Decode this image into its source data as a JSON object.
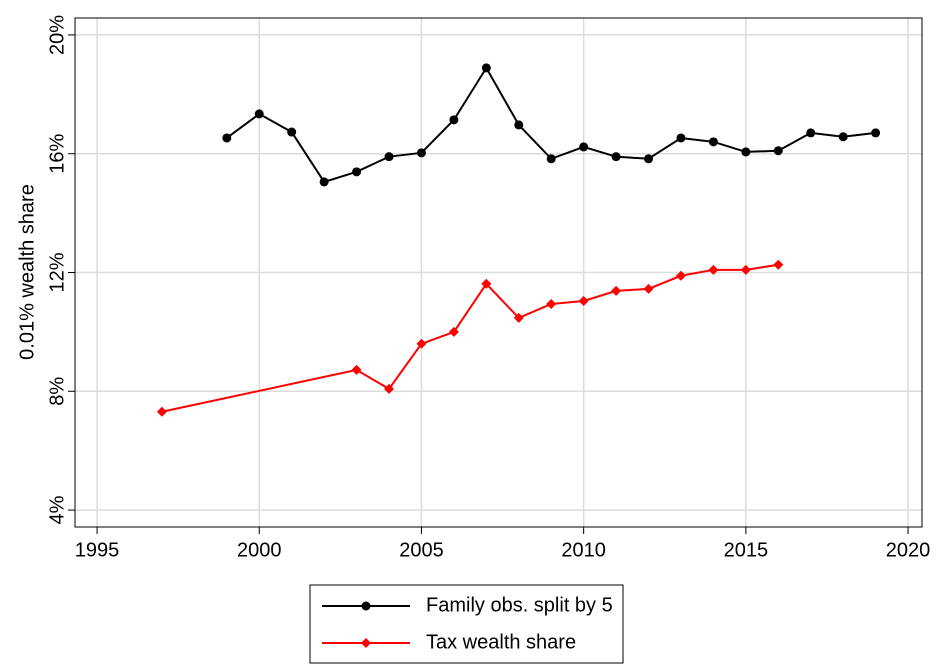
{
  "chart_data": {
    "type": "line",
    "ylabel": "0.01% wealth share",
    "xlim": [
      1994.32,
      2020.43
    ],
    "ylim": [
      3.43,
      20.57
    ],
    "xticks": [
      1995,
      2000,
      2005,
      2010,
      2015,
      2020
    ],
    "yticks": [
      {
        "value": 4,
        "label": "4%"
      },
      {
        "value": 8,
        "label": "8%"
      },
      {
        "value": 12,
        "label": "12%"
      },
      {
        "value": 16,
        "label": "16%"
      },
      {
        "value": 20,
        "label": "20%"
      }
    ],
    "grid": true,
    "legend": "bottom",
    "series": [
      {
        "name": "Family obs. split by 5",
        "color": "#000000",
        "marker": "circle",
        "x": [
          1999,
          2000,
          2001,
          2002,
          2003,
          2004,
          2005,
          2006,
          2007,
          2008,
          2009,
          2010,
          2011,
          2012,
          2013,
          2014,
          2015,
          2016,
          2017,
          2018,
          2019
        ],
        "values": [
          16.53,
          17.34,
          16.73,
          15.05,
          15.39,
          15.9,
          16.03,
          17.14,
          18.89,
          16.97,
          15.83,
          16.23,
          15.9,
          15.83,
          16.53,
          16.4,
          16.06,
          16.1,
          16.7,
          16.57,
          16.7
        ]
      },
      {
        "name": "Tax wealth share",
        "color": "#ff0000",
        "marker": "diamond",
        "x": [
          1997,
          2003,
          2004,
          2005,
          2006,
          2007,
          2008,
          2009,
          2010,
          2011,
          2012,
          2013,
          2014,
          2015,
          2016
        ],
        "values": [
          7.31,
          8.72,
          8.08,
          9.6,
          10.0,
          11.62,
          10.47,
          10.94,
          11.04,
          11.38,
          11.45,
          11.89,
          12.09,
          12.09,
          12.26
        ]
      }
    ]
  }
}
